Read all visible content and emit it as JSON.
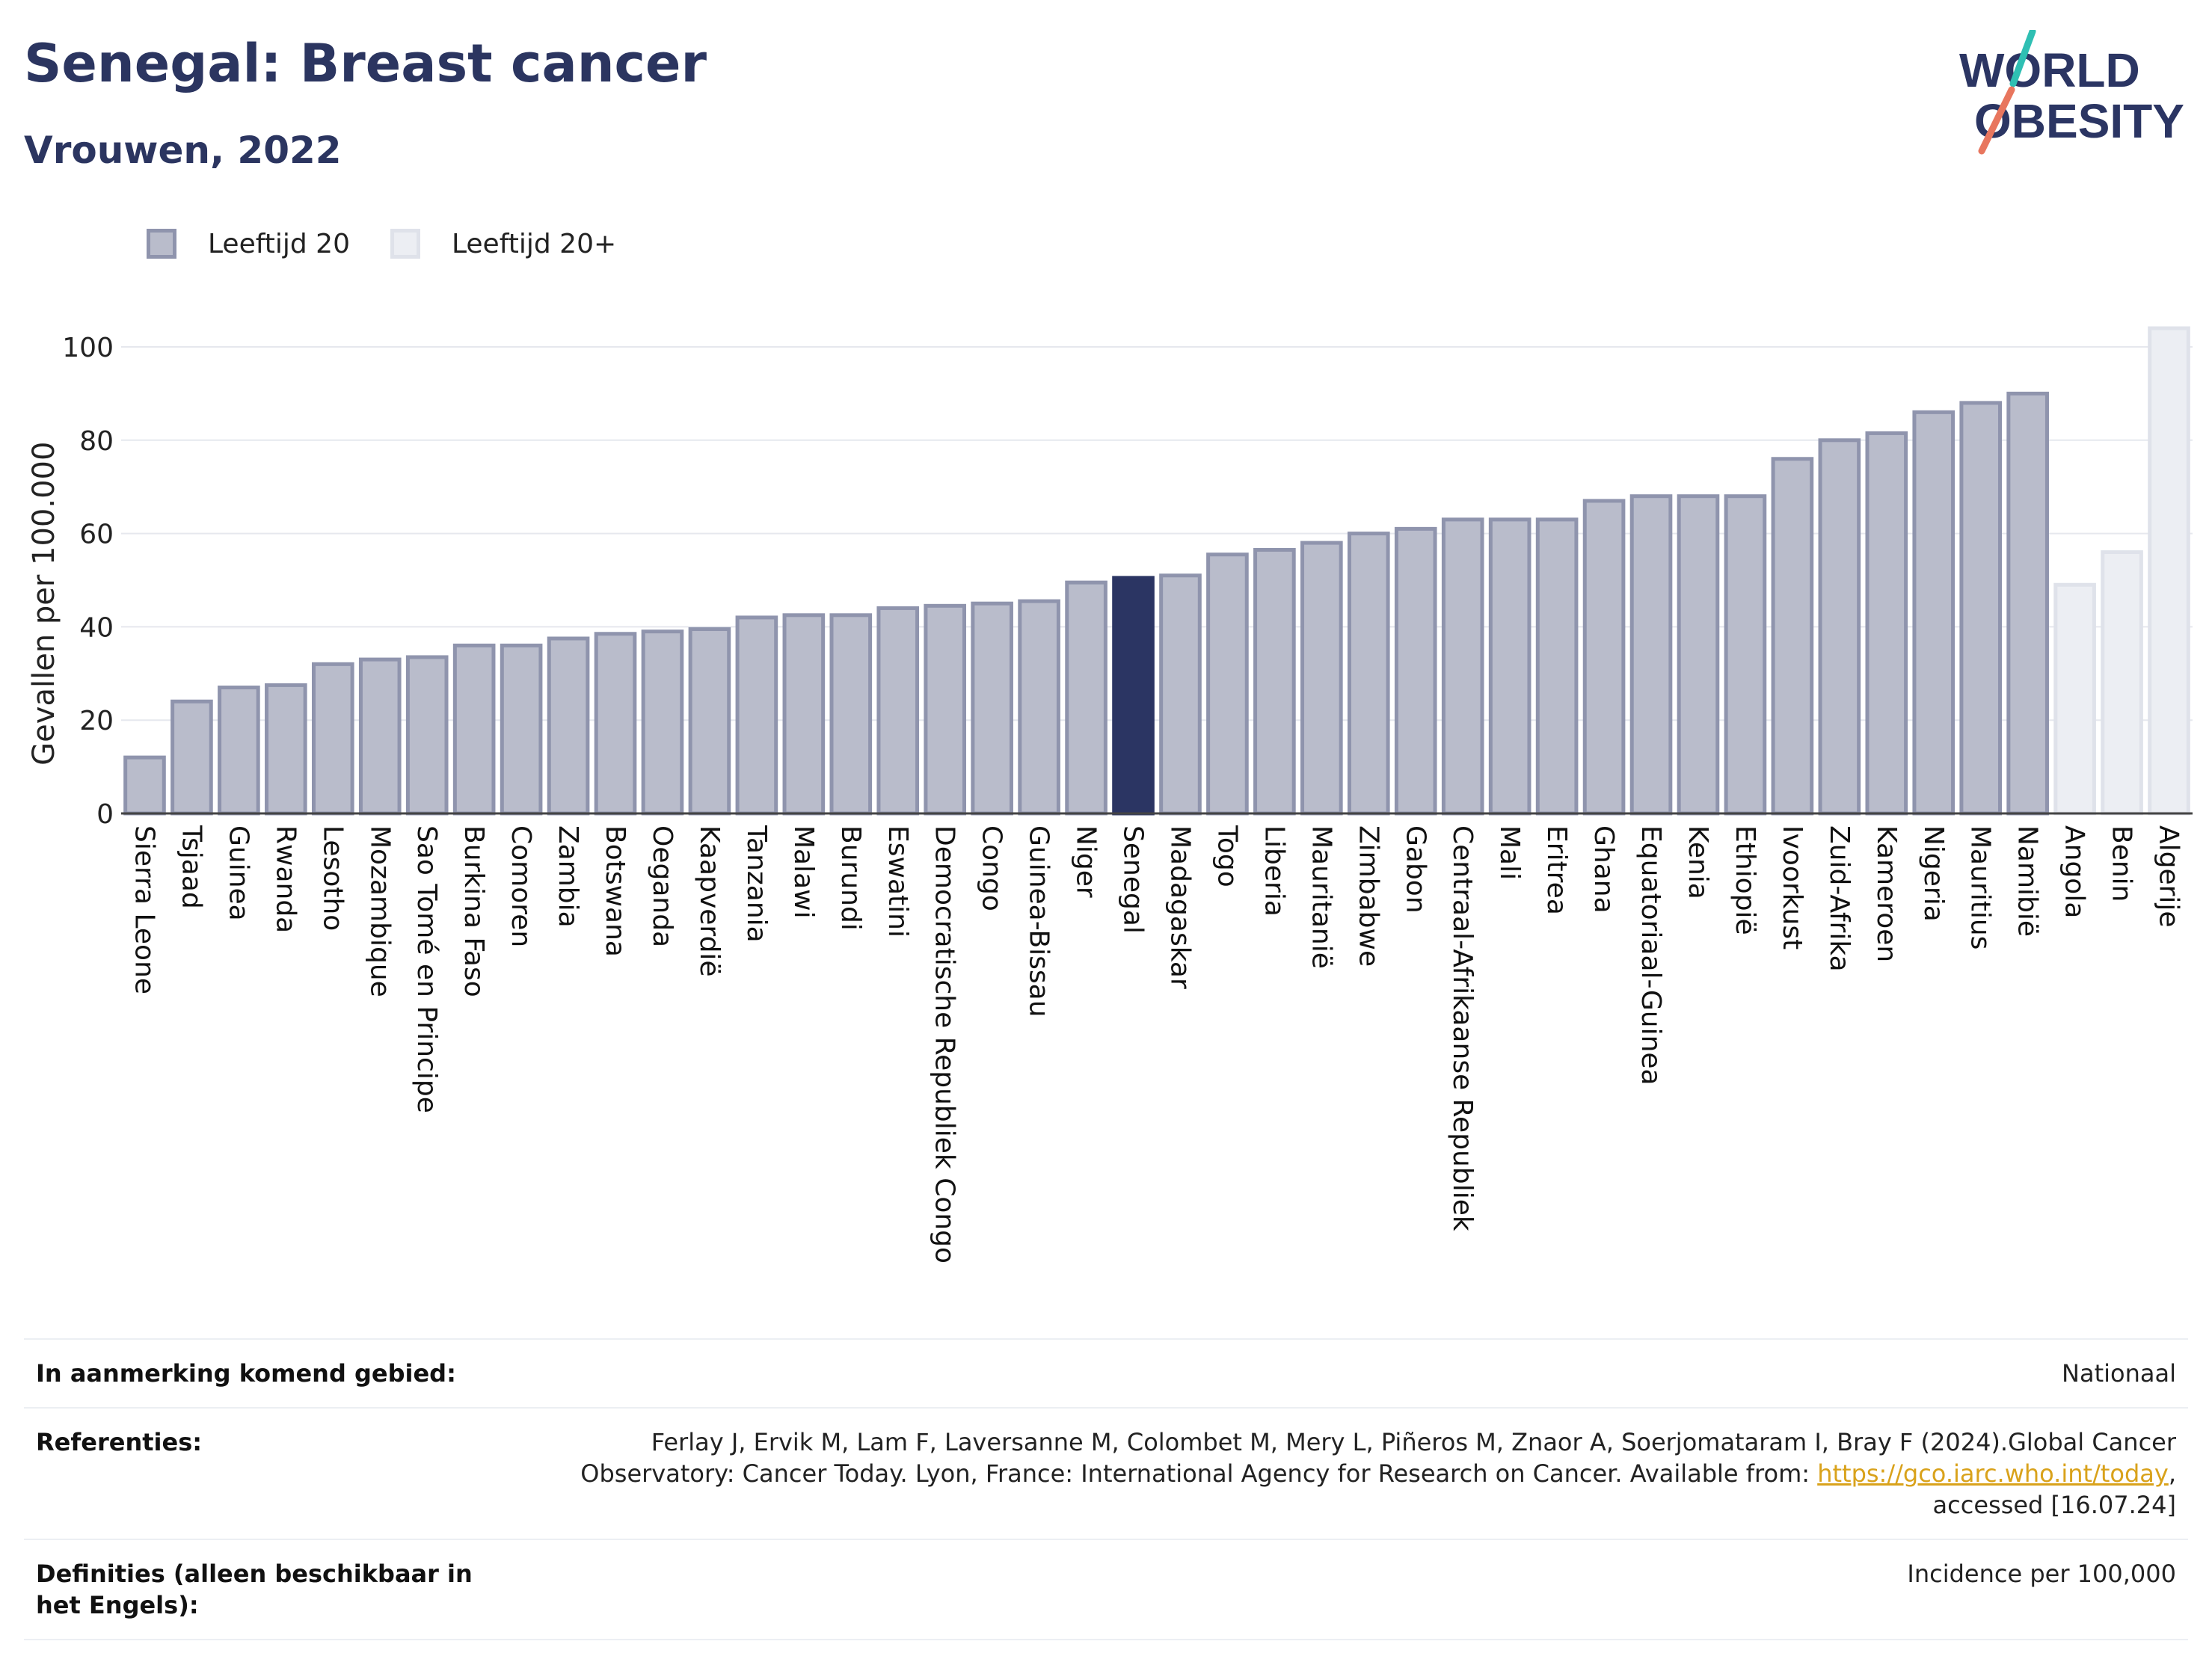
{
  "header": {
    "title": "Senegal: Breast cancer",
    "subtitle": "Vrouwen, 2022"
  },
  "logo": {
    "line1": "WORLD",
    "line2": "OBESITY"
  },
  "legend": [
    {
      "label": "Leeftijd 20",
      "color": "#b9bccb",
      "border": "#8f94ad"
    },
    {
      "label": "Leeftijd 20+",
      "color": "#eceef3",
      "border": "#dfe2ea"
    }
  ],
  "colors": {
    "bar": "#b9bccb",
    "bar_border": "#8f94ad",
    "highlight": "#2b3563",
    "light_bar": "#eceef3",
    "light_border": "#dfe2ea"
  },
  "chart_data": {
    "type": "bar",
    "ylabel": "Gevallen per 100.000",
    "ylim": [
      0,
      105
    ],
    "yticks": [
      0,
      20,
      40,
      60,
      80,
      100
    ],
    "grid": true,
    "legend_placement": "top-left",
    "highlight": "Senegal",
    "categories": [
      "Sierra Leone",
      "Tsjaad",
      "Guinea",
      "Rwanda",
      "Lesotho",
      "Mozambique",
      "Sao Tomé en Principe",
      "Burkina Faso",
      "Comoren",
      "Zambia",
      "Botswana",
      "Oeganda",
      "Kaapverdië",
      "Tanzania",
      "Malawi",
      "Burundi",
      "Eswatini",
      "Democratische Republiek Congo",
      "Congo",
      "Guinea-Bissau",
      "Niger",
      "Senegal",
      "Madagaskar",
      "Togo",
      "Liberia",
      "Mauritanië",
      "Zimbabwe",
      "Gabon",
      "Centraal-Afrikaanse Republiek",
      "Mali",
      "Eritrea",
      "Ghana",
      "Equatoriaal-Guinea",
      "Kenia",
      "Ethiopië",
      "Ivoorkust",
      "Zuid-Afrika",
      "Kameroen",
      "Nigeria",
      "Mauritius",
      "Namibië",
      "Angola",
      "Benin",
      "Algerije"
    ],
    "values": [
      12,
      24,
      27,
      27.5,
      32,
      33,
      33.5,
      36,
      36,
      37.5,
      38.5,
      39,
      39.5,
      42,
      42.5,
      42.5,
      44,
      44.5,
      45,
      45.5,
      49.5,
      50.5,
      51,
      55.5,
      56.5,
      58,
      60,
      61,
      63,
      63,
      63,
      67,
      68,
      68,
      68,
      76,
      80,
      81.5,
      86,
      88,
      90,
      49,
      56,
      104
    ],
    "series_type": [
      "Leeftijd 20",
      "Leeftijd 20",
      "Leeftijd 20",
      "Leeftijd 20",
      "Leeftijd 20",
      "Leeftijd 20",
      "Leeftijd 20",
      "Leeftijd 20",
      "Leeftijd 20",
      "Leeftijd 20",
      "Leeftijd 20",
      "Leeftijd 20",
      "Leeftijd 20",
      "Leeftijd 20",
      "Leeftijd 20",
      "Leeftijd 20",
      "Leeftijd 20",
      "Leeftijd 20",
      "Leeftijd 20",
      "Leeftijd 20",
      "Leeftijd 20",
      "Leeftijd 20",
      "Leeftijd 20",
      "Leeftijd 20",
      "Leeftijd 20",
      "Leeftijd 20",
      "Leeftijd 20",
      "Leeftijd 20",
      "Leeftijd 20",
      "Leeftijd 20",
      "Leeftijd 20",
      "Leeftijd 20",
      "Leeftijd 20",
      "Leeftijd 20",
      "Leeftijd 20",
      "Leeftijd 20",
      "Leeftijd 20",
      "Leeftijd 20",
      "Leeftijd 20",
      "Leeftijd 20",
      "Leeftijd 20",
      "Leeftijd 20+",
      "Leeftijd 20+",
      "Leeftijd 20+"
    ]
  },
  "meta": {
    "area_label": "In aanmerking komend gebied:",
    "area_value": "Nationaal",
    "refs_label": "Referenties:",
    "refs_text_1": "Ferlay J, Ervik M, Lam F, Laversanne M, Colombet M, Mery L, Piñeros M, Znaor A, Soerjomataram I, Bray F (2024).Global Cancer",
    "refs_text_2": "Observatory: Cancer Today. Lyon, France: International Agency for Research on Cancer. Available from: ",
    "refs_link": "https://gco.iarc.who.int/today",
    "refs_text_3": ",",
    "refs_text_4": "accessed [16.07.24]",
    "defs_label": "Definities (alleen beschikbaar in het Engels):",
    "defs_value": "Incidence per 100,000"
  }
}
